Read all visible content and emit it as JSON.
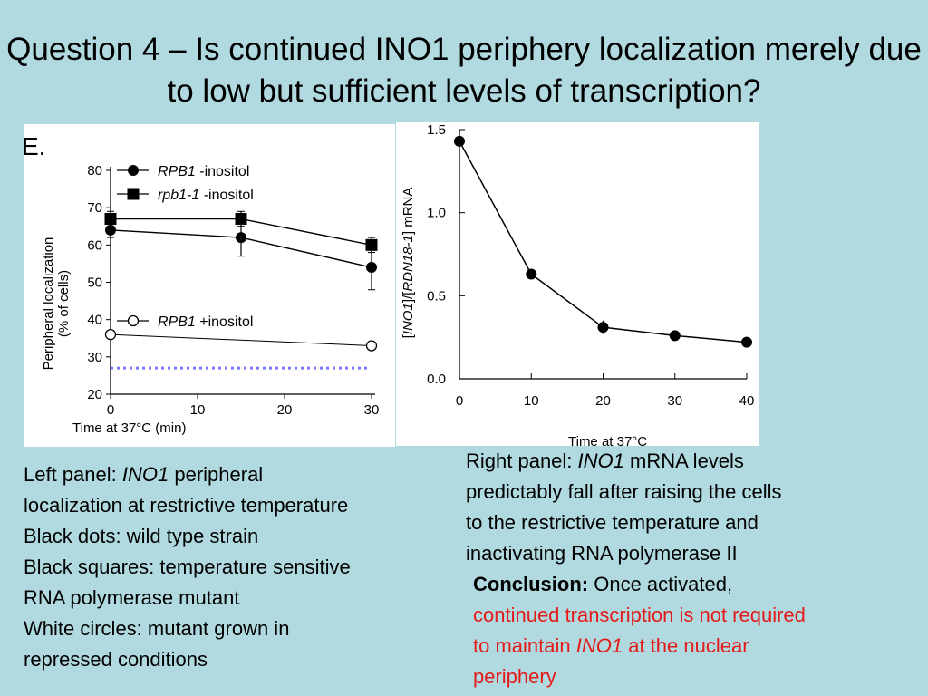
{
  "title": "Question 4 – Is continued INO1 periphery localization merely due to low but sufficient levels of transcription?",
  "colors": {
    "background": "#b0dadf",
    "red": "#e31b1b",
    "dotted": "#7a7aff"
  },
  "left_caption": {
    "l1_prefix": "Left panel: ",
    "l1_italic": "INO1",
    "l1_suffix": " peripheral",
    "l2": "localization at restrictive temperature",
    "l3": "Black dots: wild type strain",
    "l4": "Black squares: temperature sensitive",
    "l5": "RNA polymerase mutant",
    "l6": "White circles: mutant grown in",
    "l7": "repressed conditions"
  },
  "right_caption": {
    "l1_prefix": "Right panel: ",
    "l1_italic": "INO1",
    "l1_suffix": " mRNA levels",
    "l2": "predictably fall after raising the cells",
    "l3": "to the restrictive temperature and",
    "l4": "inactivating RNA polymerase II"
  },
  "conclusion": {
    "label": "Conclusion:",
    "l1_rest": " Once activated,",
    "l2": "continued transcription is not required",
    "l3_prefix": "to maintain ",
    "l3_italic": "INO1",
    "l3_suffix": " at the nuclear",
    "l4": "periphery"
  },
  "chart_data": [
    {
      "type": "line",
      "panel_label": "E.",
      "xlabel": "Time at 37°C (min)",
      "ylabel_line1": "Peripheral localization",
      "ylabel_line2": "(% of cells)",
      "x": [
        0,
        15,
        30
      ],
      "xticks": [
        0,
        10,
        20,
        30
      ],
      "yticks": [
        20,
        30,
        40,
        50,
        60,
        70,
        80
      ],
      "xlim": [
        0,
        30
      ],
      "ylim": [
        20,
        80
      ],
      "series": [
        {
          "name_italic": "RPB1",
          "name_rest": " -inositol",
          "marker": "circle-filled",
          "values": [
            64,
            62,
            54
          ],
          "errors": [
            2,
            5,
            6
          ]
        },
        {
          "name_italic": "rpb1-1",
          "name_rest": " -inositol",
          "marker": "square-filled",
          "values": [
            67,
            67,
            60
          ],
          "errors": [
            2,
            2,
            2
          ]
        },
        {
          "name_italic": "RPB1",
          "name_rest": " +inositol",
          "marker": "circle-open",
          "values": [
            36,
            null,
            33
          ],
          "errors": [
            0,
            0,
            0
          ]
        }
      ],
      "reference_line": {
        "y": 27,
        "style": "dotted"
      }
    },
    {
      "type": "line",
      "xlabel": "Time at 37°C",
      "ylabel_a": "[",
      "ylabel_b": "INO1",
      "ylabel_c": "]/[",
      "ylabel_d": "RDN18-1",
      "ylabel_e": "] mRNA",
      "x": [
        0,
        10,
        20,
        30,
        40
      ],
      "xticks": [
        0,
        10,
        20,
        30,
        40
      ],
      "yticks": [
        "0.0",
        "0.5",
        "1.0",
        "1.5"
      ],
      "xlim": [
        0,
        40
      ],
      "ylim": [
        0,
        1.5
      ],
      "series": [
        {
          "values": [
            1.43,
            0.63,
            0.31,
            0.26,
            0.22
          ],
          "errors": [
            0.03,
            0.02,
            0.04,
            0.01,
            0.01
          ]
        }
      ]
    }
  ]
}
